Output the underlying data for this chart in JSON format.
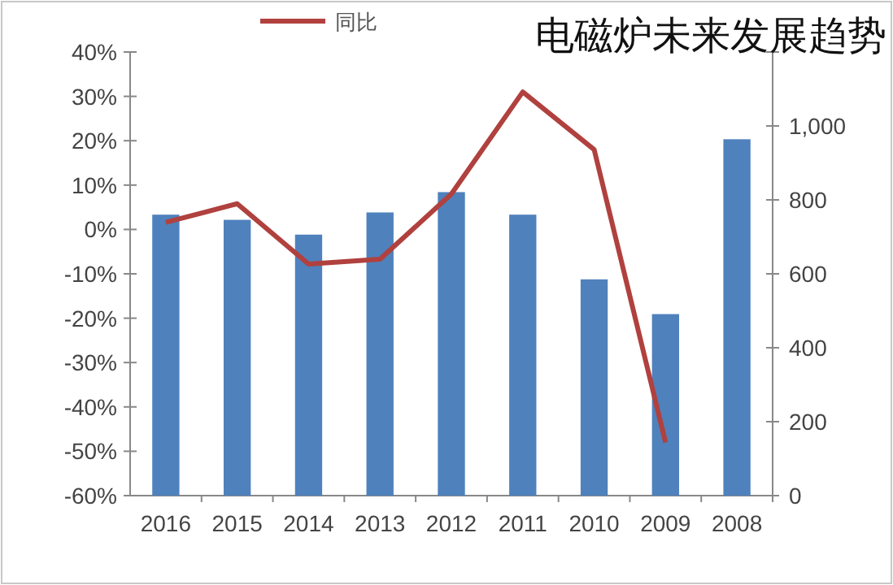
{
  "chart_data": {
    "type": "bar",
    "title": "电磁炉未来发展趋势",
    "categories": [
      "2016",
      "2015",
      "2014",
      "2013",
      "2012",
      "2011",
      "2010",
      "2009",
      "2008"
    ],
    "series": [
      {
        "color": "#4f81bd",
        "axis": "y2",
        "values": [
          760,
          746,
          706,
          766,
          821,
          760,
          585,
          491,
          964
        ]
      },
      {
        "type": "line",
        "name": "同比",
        "color": "#b0413e",
        "axis": "y",
        "values": [
          1.6,
          5.8,
          -7.8,
          -6.7,
          8,
          31,
          18,
          -48,
          null
        ]
      }
    ],
    "ylim": [
      -60,
      40
    ],
    "yticks": [
      {
        "value": -60,
        "label": "-60%"
      },
      {
        "value": -50,
        "label": "-50%"
      },
      {
        "value": -40,
        "label": "-40%"
      },
      {
        "value": -30,
        "label": "-30%"
      },
      {
        "value": -20,
        "label": "-20%"
      },
      {
        "value": -10,
        "label": "-10%"
      },
      {
        "value": 0,
        "label": "0%"
      },
      {
        "value": 10,
        "label": "10%"
      },
      {
        "value": 20,
        "label": "20%"
      },
      {
        "value": 30,
        "label": "30%"
      },
      {
        "value": 40,
        "label": "40%"
      }
    ],
    "y2lim": [
      0,
      1200
    ],
    "y2ticks": [
      0,
      200,
      400,
      600,
      800,
      {
        "value": 1000,
        "label": "1,000"
      },
      {
        "value": 1200,
        "label": null
      }
    ],
    "legend": "top",
    "grid": false
  }
}
